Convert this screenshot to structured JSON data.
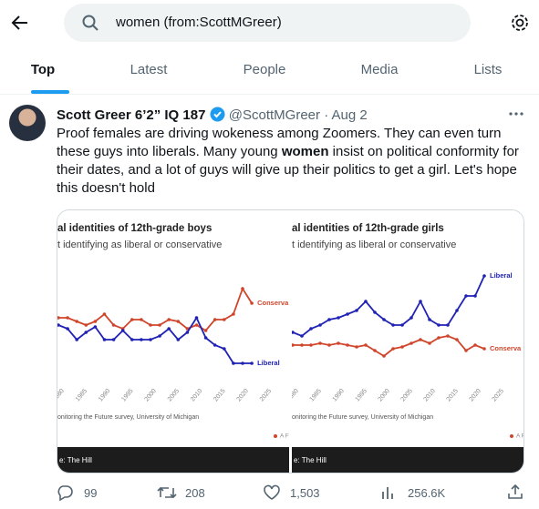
{
  "search": {
    "query": "women (from:ScottMGreer)"
  },
  "tabs": [
    "Top",
    "Latest",
    "People",
    "Media",
    "Lists"
  ],
  "tweet": {
    "name": "Scott Greer 6’2” IQ 187",
    "handle": "@ScottMGreer",
    "separator": "·",
    "date": "Aug 2",
    "text": [
      "Proof females are driving wokeness among Zoomers. They can even turn these guys into liberals.  Many young ",
      "women",
      " insist on political conformity for their dates, and a lot of guys will give up their politics to get a girl. Let's hope this doesn't hold"
    ],
    "media": [
      {
        "type": "line",
        "title": "al identities of 12th-grade boys",
        "subtitle": "t identifying as liberal or conservative",
        "x": [
          1980,
          1982,
          1984,
          1986,
          1988,
          1990,
          1992,
          1994,
          1996,
          1998,
          2000,
          2002,
          2004,
          2006,
          2008,
          2010,
          2012,
          2014,
          2016,
          2018,
          2020,
          2022
        ],
        "series": [
          {
            "name": "Conserva",
            "color": "#d0452a",
            "values": [
              23,
              23,
              22,
              21,
              22,
              24,
              21,
              20,
              22.5,
              22.5,
              21,
              21,
              22.5,
              22,
              20,
              21,
              19.5,
              22.5,
              22.5,
              24,
              31,
              27
            ]
          },
          {
            "name": "Liberal",
            "color": "#1f22b5",
            "values": [
              21,
              20,
              17,
              19,
              20.5,
              17,
              17,
              19.5,
              17,
              17,
              17,
              18,
              20,
              17,
              19,
              23,
              17.5,
              15.5,
              14.5,
              10.5,
              10.5,
              10.5
            ]
          }
        ],
        "xlim": [
          1980,
          2030
        ],
        "ylim": [
          5,
          40
        ],
        "xticks": [
          1980,
          1985,
          1990,
          1995,
          2000,
          2005,
          2010,
          2015,
          2020,
          2025
        ],
        "source": "onitoring the Future survey, University of Michigan",
        "note": "A Fi",
        "credit": "e: The Hill"
      },
      {
        "type": "line",
        "title": "al identities of 12th-grade girls",
        "subtitle": "t identifying as liberal or conservative",
        "x": [
          1980,
          1982,
          1984,
          1986,
          1988,
          1990,
          1992,
          1994,
          1996,
          1998,
          2000,
          2002,
          2004,
          2006,
          2008,
          2010,
          2012,
          2014,
          2016,
          2018,
          2020,
          2022
        ],
        "series": [
          {
            "name": "Liberal",
            "color": "#1f22b5",
            "values": [
              19,
              18,
              20,
              21,
              22.5,
              23,
              24,
              25,
              27.5,
              24.5,
              22.5,
              21,
              21,
              23,
              27.5,
              22.5,
              21,
              21,
              25,
              29,
              29,
              34.5
            ]
          },
          {
            "name": "Conserva",
            "color": "#d0452a",
            "values": [
              15.5,
              15.5,
              15.5,
              16,
              15.5,
              16,
              15.5,
              15,
              15.5,
              14,
              12.5,
              14.5,
              15,
              16,
              17,
              16,
              17.5,
              18,
              17,
              14,
              15.5,
              14.5
            ]
          }
        ],
        "xlim": [
          1980,
          2030
        ],
        "ylim": [
          5,
          40
        ],
        "xticks": [
          1980,
          1985,
          1990,
          1995,
          2000,
          2005,
          2010,
          2015,
          2020,
          2025
        ],
        "source": "onitoring the Future survey, University of Michigan",
        "note": "A Fi",
        "credit": "e: The Hill"
      }
    ],
    "stats": {
      "replies": "99",
      "retweets": "208",
      "likes": "1,503",
      "views": "256.6K"
    }
  }
}
